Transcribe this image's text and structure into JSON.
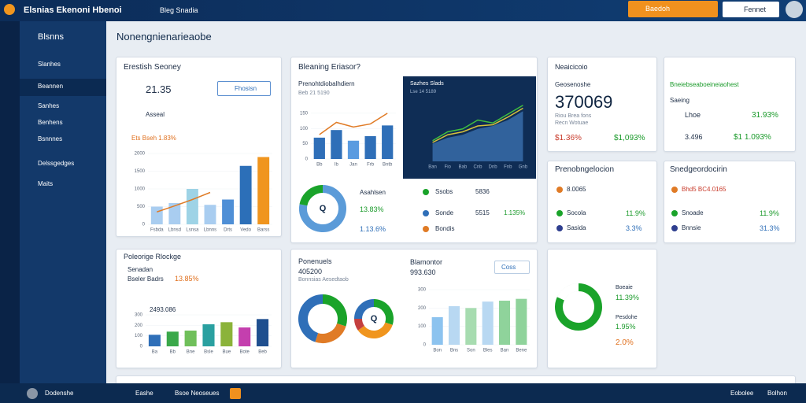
{
  "topbar": {
    "title": "Elsnias Ekenoni Hbenoi",
    "link": "Bleg Snadia",
    "button": "Baedoh",
    "search": "Fennet"
  },
  "sidebar": {
    "header": "Blsnns",
    "items": [
      "Slanhes",
      "Beannen",
      "Sanhes",
      "Benhens",
      "Bsnnnes",
      "Delssgedges",
      "Maits"
    ]
  },
  "page_title": "Nonengnienarieaobe",
  "cards": [
    {
      "title": "Erestish Seoney",
      "value": "21.35",
      "button": "Fhosisn",
      "filter": "Asseal",
      "change": "Ets Bseh 1.83%",
      "chart": {
        "categories": [
          "Fsbda",
          "Lbnsd",
          "Lsnsa",
          "Lbnns",
          "Drts",
          "Vedo",
          "Barss"
        ],
        "values": [
          500,
          600,
          1000,
          550,
          700,
          1650,
          1900
        ],
        "colors": [
          "#a9cdf0",
          "#a9cdf0",
          "#9ed3e6",
          "#a9cdf0",
          "#4f8fd6",
          "#2c6fb8",
          "#f0951e"
        ],
        "line": {
          "values": [
            350,
            520,
            700,
            900,
            null,
            null,
            null
          ],
          "color": "#e07b26"
        },
        "ylim": [
          0,
          2000
        ],
        "yticks": [
          0,
          500,
          1000,
          1500,
          2000
        ]
      }
    },
    {
      "title": "Bleaning Eriasor?",
      "sub": {
        "title": "Prenohtdiobalhdiern",
        "caption": "Beb 21 5190",
        "chart": {
          "categories": [
            "Bb",
            "Ib",
            "Jan",
            "Frb",
            "Bntb"
          ],
          "values": [
            70,
            95,
            60,
            75,
            110
          ],
          "colors": [
            "#2f6fb8",
            "#2f6fb8",
            "#5a9be0",
            "#2f6fb8",
            "#2f6fb8"
          ],
          "line": {
            "values": [
              80,
              120,
              105,
              115,
              150
            ],
            "color": "#e07b26"
          },
          "ylim": [
            0,
            160
          ],
          "yticks": [
            0,
            50,
            100,
            150
          ]
        }
      },
      "dark": {
        "title": "Sazhes Slads",
        "caption": "Lse 14 5189",
        "chart": {
          "categories": [
            "Ban",
            "Fio",
            "Bab",
            "Cnb",
            "Dnb",
            "Fnb",
            "Gnb"
          ],
          "area": {
            "values": [
              30,
              40,
              45,
              55,
              60,
              70,
              85
            ],
            "color": "#3a6fae"
          },
          "lines": [
            {
              "values": [
                35,
                50,
                55,
                70,
                65,
                80,
                95
              ],
              "color": "#3fbf3f"
            },
            {
              "values": [
                32,
                45,
                50,
                60,
                62,
                75,
                90
              ],
              "color": "#d8c23a"
            }
          ],
          "ylim": [
            0,
            100
          ]
        }
      },
      "donut": {
        "label": "Q",
        "values": [
          78,
          22
        ],
        "colors": [
          "#5b9bd8",
          "#1aa32a"
        ]
      },
      "legend": {
        "name": "Asahlsen",
        "change": "13.83%",
        "sub": "1.13.6%"
      },
      "list": [
        {
          "name": "Ssobs",
          "value": "5836"
        },
        {
          "name": "Sonde",
          "value": "5515",
          "change": "1.135%"
        },
        {
          "name": "Bondis",
          "value": ""
        }
      ]
    },
    {
      "title": "Neaicicoio",
      "label": "Geosenoshe",
      "value": "370069",
      "note1": "Riou Brea fons",
      "note2": "Recn Wotuae",
      "down": "$1.36%",
      "up": "$1,093%"
    },
    {
      "title": "Bneiebseaboeineiaohest",
      "label": "Saeing",
      "row1": {
        "name": "Lhoe",
        "value": "31.93%"
      },
      "row2": {
        "name": "3.496",
        "value": "$1 1.093%"
      }
    },
    {
      "title": "Prenobngelocion",
      "rows": [
        {
          "name": "8.0065",
          "value": ""
        },
        {
          "name": "Socola",
          "value": "11.9%"
        },
        {
          "name": "Sasida",
          "value": "3.3%"
        }
      ]
    },
    {
      "title": "Snedgeordocirin",
      "rows": [
        {
          "name": "Bhd5 BC4.0165",
          "value": ""
        },
        {
          "name": "Snoade",
          "value": "11.9%"
        },
        {
          "name": "Bnnsie",
          "value": "31.3%"
        }
      ]
    },
    {
      "title": "Poleorige Rlockge",
      "label": "Senadan",
      "sub": "Bseler Badrs",
      "change": "13.85%",
      "value": "2493.086",
      "chart": {
        "categories": [
          "Ba",
          "Bb",
          "Bne",
          "Bsle",
          "Bue",
          "Bote",
          "Beb"
        ],
        "values": [
          110,
          140,
          150,
          210,
          230,
          180,
          260
        ],
        "colors": [
          "#2f6fb8",
          "#3aa84a",
          "#6fbf5a",
          "#2aa0a0",
          "#8bb33a",
          "#c43fae",
          "#1f4f8f"
        ],
        "ylim": [
          0,
          300
        ],
        "yticks": [
          0,
          100,
          200,
          300
        ]
      }
    },
    {
      "title": "Ponenuels",
      "value": "405200",
      "sub": "Bonnsias Aesedtaob",
      "label2": "Blamontor",
      "value2": "993.630",
      "dropdown": "Coss",
      "donut1": {
        "values": [
          30,
          25,
          45
        ],
        "colors": [
          "#1aa32a",
          "#e07b26",
          "#2f6fb8"
        ]
      },
      "donut2": {
        "label": "Q",
        "values": [
          30,
          35,
          10,
          25
        ],
        "colors": [
          "#1aa32a",
          "#f0951e",
          "#c43f3f",
          "#2f6fb8"
        ]
      },
      "chart": {
        "categories": [
          "Bon",
          "Bns",
          "Son",
          "Bles",
          "Ban",
          "Bene"
        ],
        "values": [
          150,
          210,
          200,
          235,
          240,
          250
        ],
        "colors": [
          "#8cc3ef",
          "#b8d8f2",
          "#a7dcb0",
          "#b8d8f2",
          "#8fd39b",
          "#8fd39b"
        ],
        "ylim": [
          0,
          300
        ],
        "yticks": [
          0,
          100,
          200,
          300
        ]
      }
    },
    {
      "donut": {
        "values": [
          82,
          18
        ],
        "colors": [
          "#1aa32a",
          "#ffffff"
        ]
      },
      "label": "Boeaie",
      "value": "11.39%",
      "label2": "Pesdohe",
      "value2": "1.95%",
      "value3": "2.0%"
    }
  ],
  "bottombar": {
    "user": "Dodenshe",
    "tab1": "Eashe",
    "tab2": "Bsoe Neoseues",
    "right1": "Eobolee",
    "right2": "Bolhon"
  }
}
